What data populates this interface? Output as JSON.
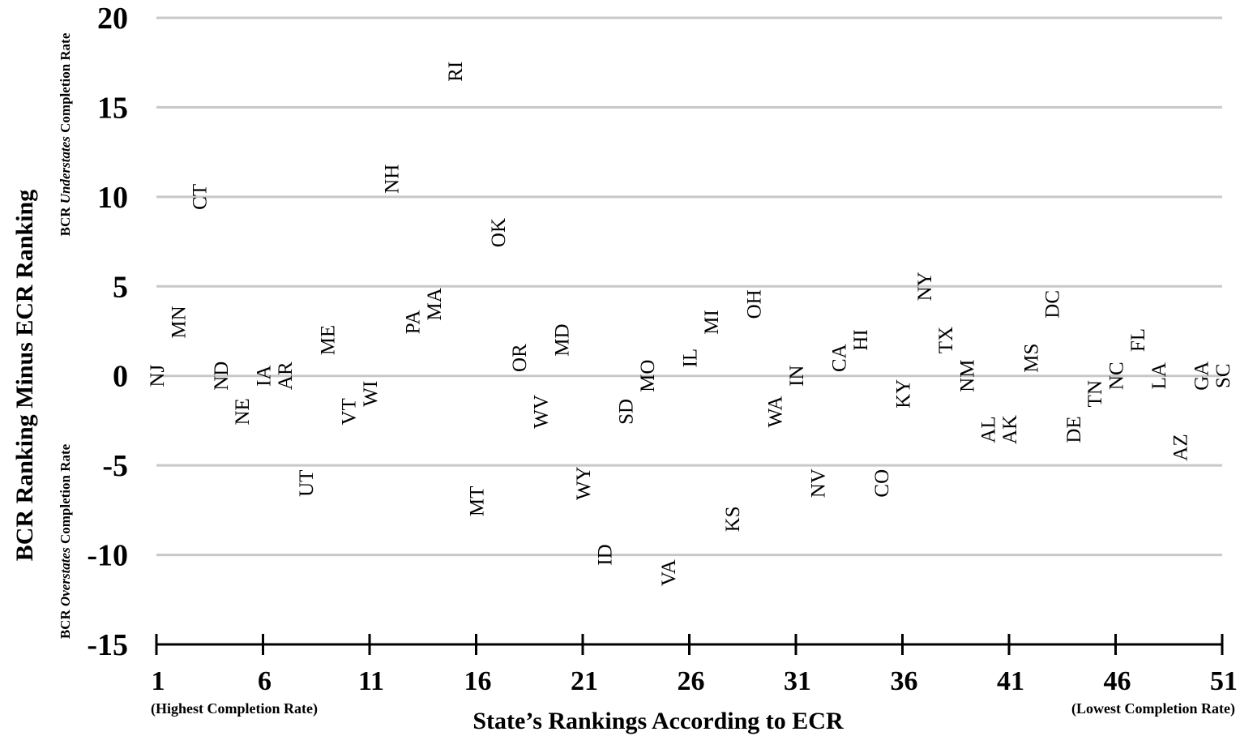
{
  "chart_data": {
    "type": "scatter",
    "title": "",
    "xlabel": "State’s Rankings According to ECR",
    "ylabel": "BCR Ranking Minus ECR Ranking",
    "y_upper_note": {
      "prefix": "BCR ",
      "italic": "Understates",
      "suffix": " Completion Rate"
    },
    "y_lower_note": {
      "prefix": "BCR ",
      "italic": "Overstates",
      "suffix": " Completion Rate"
    },
    "x_left_note": "(Highest Completion Rate)",
    "x_right_note": "(Lowest Completion Rate)",
    "xlim": [
      1,
      51
    ],
    "ylim": [
      -15,
      20
    ],
    "x_ticks": [
      1,
      6,
      11,
      16,
      21,
      26,
      31,
      36,
      41,
      46,
      51
    ],
    "y_ticks": [
      20,
      15,
      10,
      5,
      0,
      -5,
      -10,
      -15
    ],
    "grid": true,
    "label_orientation": "vertical",
    "points": [
      {
        "label": "NJ",
        "x": 1,
        "y": 0
      },
      {
        "label": "MN",
        "x": 2,
        "y": 3
      },
      {
        "label": "CT",
        "x": 3,
        "y": 10
      },
      {
        "label": "ND",
        "x": 4,
        "y": 0
      },
      {
        "label": "NE",
        "x": 5,
        "y": -2
      },
      {
        "label": "IA",
        "x": 6,
        "y": 0
      },
      {
        "label": "AR",
        "x": 7,
        "y": 0
      },
      {
        "label": "UT",
        "x": 8,
        "y": -6
      },
      {
        "label": "ME",
        "x": 9,
        "y": 2
      },
      {
        "label": "VT",
        "x": 10,
        "y": -2
      },
      {
        "label": "WI",
        "x": 11,
        "y": -1
      },
      {
        "label": "NH",
        "x": 12,
        "y": 11
      },
      {
        "label": "PA",
        "x": 13,
        "y": 3
      },
      {
        "label": "MA",
        "x": 14,
        "y": 4
      },
      {
        "label": "RI",
        "x": 15,
        "y": 17
      },
      {
        "label": "MT",
        "x": 16,
        "y": -7
      },
      {
        "label": "OK",
        "x": 17,
        "y": 8
      },
      {
        "label": "OR",
        "x": 18,
        "y": 1
      },
      {
        "label": "WV",
        "x": 19,
        "y": -2
      },
      {
        "label": "MD",
        "x": 20,
        "y": 2
      },
      {
        "label": "WY",
        "x": 21,
        "y": -6
      },
      {
        "label": "ID",
        "x": 22,
        "y": -10
      },
      {
        "label": "SD",
        "x": 23,
        "y": -2
      },
      {
        "label": "MO",
        "x": 24,
        "y": 0
      },
      {
        "label": "VA",
        "x": 25,
        "y": -11
      },
      {
        "label": "IL",
        "x": 26,
        "y": 1
      },
      {
        "label": "MI",
        "x": 27,
        "y": 3
      },
      {
        "label": "KS",
        "x": 28,
        "y": -8
      },
      {
        "label": "OH",
        "x": 29,
        "y": 4
      },
      {
        "label": "WA",
        "x": 30,
        "y": -2
      },
      {
        "label": "IN",
        "x": 31,
        "y": 0
      },
      {
        "label": "NV",
        "x": 32,
        "y": -6
      },
      {
        "label": "CA",
        "x": 33,
        "y": 1
      },
      {
        "label": "HI",
        "x": 34,
        "y": 2
      },
      {
        "label": "CO",
        "x": 35,
        "y": -6
      },
      {
        "label": "KY",
        "x": 36,
        "y": -1
      },
      {
        "label": "NY",
        "x": 37,
        "y": 5
      },
      {
        "label": "TX",
        "x": 38,
        "y": 2
      },
      {
        "label": "NM",
        "x": 39,
        "y": 0
      },
      {
        "label": "AL",
        "x": 40,
        "y": -3
      },
      {
        "label": "AK",
        "x": 41,
        "y": -3
      },
      {
        "label": "MS",
        "x": 42,
        "y": 1
      },
      {
        "label": "DC",
        "x": 43,
        "y": 4
      },
      {
        "label": "DE",
        "x": 44,
        "y": -3
      },
      {
        "label": "TN",
        "x": 45,
        "y": -1
      },
      {
        "label": "NC",
        "x": 46,
        "y": 0
      },
      {
        "label": "FL",
        "x": 47,
        "y": 2
      },
      {
        "label": "LA",
        "x": 48,
        "y": 0
      },
      {
        "label": "AZ",
        "x": 49,
        "y": -4
      },
      {
        "label": "GA",
        "x": 50,
        "y": 0
      },
      {
        "label": "SC",
        "x": 51,
        "y": 0
      }
    ]
  }
}
